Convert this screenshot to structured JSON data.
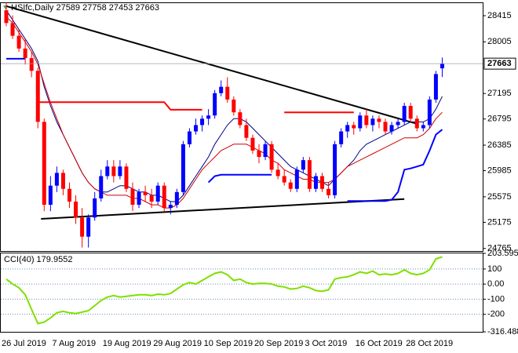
{
  "chart_data": [
    {
      "type": "candlestick",
      "title": "HSIfc,Daily  27589 27758 27453 27663",
      "categories": [
        "26 Jul 2019",
        null,
        null,
        null,
        null,
        null,
        null,
        null,
        "7 Aug 2019",
        null,
        null,
        null,
        null,
        null,
        null,
        null,
        "19 Aug 2019",
        null,
        null,
        null,
        null,
        null,
        null,
        null,
        "29 Aug 2019",
        null,
        null,
        null,
        null,
        null,
        null,
        null,
        "10 Sep 2019",
        null,
        null,
        null,
        null,
        null,
        null,
        null,
        "20 Sep 2019",
        null,
        null,
        null,
        null,
        null,
        null,
        null,
        "3 Oct 2019",
        null,
        null,
        null,
        null,
        null,
        null,
        null,
        "16 Oct 2019",
        null,
        null,
        null,
        null,
        null,
        null,
        null,
        "28 Oct 2019",
        null,
        null,
        null,
        null,
        null
      ],
      "open": [
        28500,
        28300,
        28100,
        27900,
        27750,
        27550,
        26750,
        25450,
        25750,
        25950,
        25700,
        25500,
        25250,
        24950,
        25250,
        25550,
        25900,
        26050,
        25900,
        26050,
        25700,
        25450,
        25650,
        25600,
        25500,
        25750,
        25400,
        25450,
        25650,
        26400,
        26600,
        26700,
        26800,
        26850,
        27200,
        27300,
        27100,
        26900,
        26700,
        26500,
        26300,
        26200,
        26400,
        26000,
        25900,
        25800,
        25700,
        26000,
        26150,
        25700,
        25900,
        25700,
        25600,
        26400,
        26600,
        26700,
        26650,
        26850,
        26700,
        26800,
        26750,
        26600,
        26700,
        26750,
        27000,
        26800,
        26650,
        26700,
        27100,
        27589
      ],
      "high": [
        28620,
        28420,
        28200,
        28050,
        27850,
        27600,
        26800,
        25900,
        26050,
        26000,
        25800,
        25600,
        25400,
        25300,
        25650,
        26000,
        26150,
        26150,
        26150,
        26100,
        25800,
        25700,
        25750,
        25700,
        25800,
        25800,
        25500,
        25700,
        26450,
        26650,
        26800,
        26850,
        26950,
        27250,
        27400,
        27450,
        27150,
        26950,
        26800,
        26550,
        26400,
        26450,
        26450,
        26100,
        26000,
        25850,
        26050,
        26200,
        26200,
        25950,
        25950,
        25800,
        26450,
        26650,
        26750,
        26750,
        26900,
        26950,
        26850,
        26850,
        26800,
        26750,
        26800,
        27050,
        27050,
        26850,
        26750,
        27150,
        27550,
        27758
      ],
      "low": [
        28250,
        28050,
        27850,
        27650,
        27450,
        26650,
        25350,
        25350,
        25650,
        25600,
        25400,
        25150,
        24780,
        24780,
        25200,
        25500,
        25850,
        25800,
        25850,
        25650,
        25350,
        25400,
        25500,
        25400,
        25450,
        25350,
        25300,
        25400,
        25600,
        26350,
        26550,
        26600,
        26700,
        26800,
        27150,
        27050,
        26850,
        26650,
        26450,
        26250,
        26100,
        26150,
        25950,
        25850,
        25750,
        25650,
        25650,
        25950,
        25650,
        25650,
        25650,
        25550,
        25550,
        26350,
        26500,
        26550,
        26600,
        26650,
        26600,
        26650,
        26550,
        26550,
        26650,
        26700,
        26750,
        26600,
        26600,
        26650,
        27050,
        27453
      ],
      "close": [
        28300,
        28100,
        27900,
        27750,
        27550,
        26750,
        25450,
        25750,
        25950,
        25700,
        25500,
        25250,
        24950,
        25250,
        25550,
        25900,
        26050,
        25900,
        26050,
        25700,
        25450,
        25650,
        25600,
        25500,
        25750,
        25400,
        25450,
        25650,
        26400,
        26600,
        26700,
        26800,
        26850,
        27200,
        27300,
        27100,
        26900,
        26700,
        26500,
        26300,
        26200,
        26400,
        26000,
        25900,
        25800,
        25700,
        26000,
        26150,
        25700,
        25900,
        25700,
        25600,
        26400,
        26600,
        26700,
        26650,
        26850,
        26700,
        26800,
        26750,
        26600,
        26700,
        26750,
        27000,
        26800,
        26650,
        26700,
        27100,
        27500,
        27663
      ],
      "up_color": "#0000ff",
      "down_color": "#ff0000",
      "overlays": [
        {
          "color": "#00008b",
          "width": 1,
          "values": [
            28500,
            28350,
            28200,
            28050,
            27900,
            27700,
            27300,
            27000,
            26750,
            26550,
            26350,
            26150,
            25950,
            25800,
            25700,
            25650,
            25650,
            25700,
            25750,
            25750,
            25700,
            25650,
            25650,
            25600,
            25600,
            25550,
            25500,
            25500,
            25600,
            25750,
            25900,
            26050,
            26200,
            26400,
            26550,
            26700,
            26800,
            26800,
            26750,
            26650,
            26550,
            26450,
            26350,
            26250,
            26150,
            26050,
            26000,
            25950,
            25900,
            25850,
            25800,
            25750,
            25850,
            25950,
            26050,
            26150,
            26300,
            26400,
            26450,
            26500,
            26550,
            26600,
            26650,
            26700,
            26750,
            26750,
            26750,
            26800,
            26950,
            27150
          ]
        },
        {
          "color": "#d00000",
          "width": 1,
          "values": [
            28400,
            28300,
            28150,
            28000,
            27850,
            27650,
            27350,
            27050,
            26800,
            26550,
            26350,
            26150,
            25950,
            25800,
            25700,
            25650,
            25600,
            25600,
            25600,
            25600,
            25550,
            25550,
            25500,
            25450,
            25450,
            25400,
            25400,
            25450,
            25550,
            25700,
            25850,
            26000,
            26100,
            26200,
            26300,
            26350,
            26400,
            26400,
            26400,
            26350,
            26300,
            26250,
            26150,
            26100,
            26000,
            25950,
            25900,
            25850,
            25850,
            25800,
            25800,
            25800,
            25850,
            25950,
            26050,
            26100,
            26150,
            26200,
            26250,
            26300,
            26350,
            26400,
            26450,
            26500,
            26500,
            26500,
            26550,
            26650,
            26800,
            26900
          ]
        },
        {
          "color": "#ff0000",
          "width": 2,
          "values": [
            null,
            null,
            null,
            null,
            null,
            27060,
            27060,
            27060,
            27060,
            27060,
            27060,
            27060,
            27060,
            27060,
            27060,
            27060,
            27060,
            27060,
            27060,
            27060,
            27060,
            27060,
            27060,
            27060,
            27060,
            27060,
            26940,
            26940,
            26940,
            26940,
            26940,
            26940,
            null,
            null,
            null,
            null,
            null,
            null,
            null,
            null,
            null,
            null,
            null,
            null,
            26900,
            26900,
            26900,
            26900,
            26900,
            26900,
            26900,
            26900,
            26900,
            26900,
            26900,
            26900,
            null,
            null,
            null,
            null,
            null,
            null,
            null,
            null,
            null,
            null,
            null,
            null,
            null,
            null
          ]
        },
        {
          "color": "#0000ff",
          "width": 2,
          "values": [
            27740,
            27740,
            27740,
            27740,
            null,
            null,
            null,
            null,
            null,
            null,
            null,
            null,
            null,
            null,
            null,
            null,
            null,
            null,
            null,
            null,
            null,
            null,
            null,
            null,
            null,
            null,
            null,
            null,
            null,
            null,
            null,
            null,
            25800,
            25900,
            25920,
            25920,
            25920,
            25920,
            25920,
            25920,
            25920,
            25920,
            25920,
            null,
            null,
            null,
            null,
            null,
            null,
            null,
            null,
            null,
            null,
            null,
            25510,
            25510,
            25510,
            25510,
            25510,
            25510,
            25510,
            25530,
            25650,
            26000,
            26020,
            26050,
            26080,
            26300,
            26550,
            26630
          ]
        }
      ],
      "trendlines": [
        {
          "color": "#000000",
          "x": [
            0,
            65
          ],
          "values": [
            28565,
            26720
          ]
        },
        {
          "color": "#000000",
          "x": [
            5.5,
            63
          ],
          "values": [
            25230,
            25540
          ]
        }
      ],
      "ylim": [
        24725,
        28624
      ],
      "yticks": [
        28415,
        28005,
        27195,
        26795,
        26385,
        25985,
        25575,
        25175,
        24765
      ],
      "price_line_color": "#a0a0a0"
    },
    {
      "type": "line",
      "title": "CCI(40) 179.9552",
      "color": "#7fe000",
      "values": [
        33,
        0,
        -24,
        -71,
        -167,
        -262,
        -252,
        -224,
        -190,
        -181,
        -190,
        -195,
        -186,
        -176,
        -143,
        -109,
        -86,
        -76,
        -86,
        -81,
        -76,
        -71,
        -71,
        -76,
        -67,
        -71,
        -62,
        -33,
        -5,
        10,
        0,
        24,
        48,
        71,
        81,
        62,
        24,
        33,
        10,
        0,
        5,
        5,
        0,
        -14,
        -19,
        -33,
        -29,
        -14,
        -24,
        -43,
        -48,
        -38,
        33,
        43,
        48,
        62,
        81,
        71,
        86,
        62,
        67,
        62,
        71,
        95,
        71,
        62,
        71,
        95,
        167,
        179.9552
      ],
      "ylim": [
        -316.488,
        203.5953
      ],
      "yticks": [
        203.5953,
        100,
        {
          "value": 0,
          "label": "0.00"
        },
        -100,
        -200,
        -316.488
      ],
      "grid": true,
      "grid_color": "#6b8cb5"
    }
  ]
}
